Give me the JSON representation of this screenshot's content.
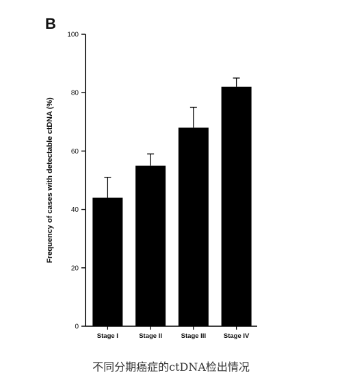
{
  "panel_label": "B",
  "caption": "不同分期癌症的ctDNA检出情况",
  "chart_data": {
    "type": "bar",
    "title": "",
    "xlabel": "",
    "ylabel": "Frequency of cases with detectable ctDNA (%)",
    "categories": [
      "Stage I",
      "Stage II",
      "Stage III",
      "Stage IV"
    ],
    "values": [
      44,
      55,
      68,
      82
    ],
    "error_upper": [
      51,
      59,
      75,
      85
    ],
    "ylim": [
      0,
      100
    ],
    "yticks": [
      0,
      20,
      40,
      60,
      80,
      100
    ],
    "grid": false,
    "legend": "none",
    "bar_color": "#000000"
  }
}
